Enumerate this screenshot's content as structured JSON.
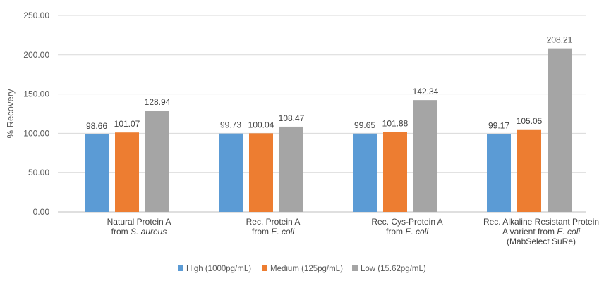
{
  "chart_data": {
    "type": "bar",
    "ylabel": "% Recovery",
    "ylim": [
      0,
      250
    ],
    "yticks": [
      "0.00",
      "50.00",
      "100.00",
      "150.00",
      "200.00",
      "250.00"
    ],
    "grid": true,
    "legend_position": "bottom",
    "categories": [
      {
        "lines": [
          [
            "Natural Protein A"
          ],
          [
            "from ",
            {
              "i": "S. aureus"
            }
          ]
        ]
      },
      {
        "lines": [
          [
            "Rec. Protein A"
          ],
          [
            "from ",
            {
              "i": "E. coli"
            }
          ]
        ]
      },
      {
        "lines": [
          [
            "Rec. Cys-Protein A"
          ],
          [
            "from ",
            {
              "i": "E. coli"
            }
          ]
        ]
      },
      {
        "lines": [
          [
            "Rec. Alkaline Resistant Protein"
          ],
          [
            "A varient from ",
            {
              "i": "E. coli"
            }
          ],
          [
            "(MabSelect SuRe)"
          ]
        ]
      }
    ],
    "series": [
      {
        "name": "High (1000pg/mL)",
        "color": "#5b9bd5",
        "values": [
          98.66,
          99.73,
          99.65,
          99.17
        ],
        "labels": [
          "98.66",
          "99.73",
          "99.65",
          "99.17"
        ]
      },
      {
        "name": "Medium (125pg/mL)",
        "color": "#ed7d31",
        "values": [
          101.07,
          100.04,
          101.88,
          105.05
        ],
        "labels": [
          "101.07",
          "100.04",
          "101.88",
          "105.05"
        ]
      },
      {
        "name": "Low (15.62pg/mL)",
        "color": "#a5a5a5",
        "values": [
          128.94,
          108.47,
          142.34,
          208.21
        ],
        "labels": [
          "128.94",
          "108.47",
          "142.34",
          "208.21"
        ]
      }
    ]
  }
}
